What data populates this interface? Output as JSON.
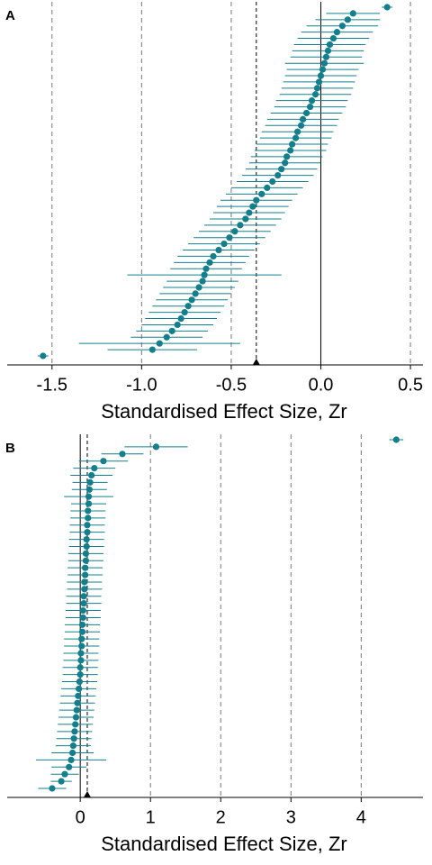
{
  "chart_data": [
    {
      "type": "forest",
      "label": "A",
      "x_label": "Standardised Effect Size, Zr",
      "color": "#137f8c",
      "xlim": [
        -1.75,
        0.57
      ],
      "xticks": [
        -1.5,
        {
          "value": -1.0,
          "label": "-1.0"
        },
        -0.5,
        {
          "value": 0.0,
          "label": "0.0"
        },
        0.5
      ],
      "mean": -0.36,
      "values": [
        0.37,
        0.18,
        0.15,
        0.12,
        0.09,
        0.07,
        0.05,
        0.04,
        0.03,
        0.02,
        0.01,
        0.0,
        -0.01,
        -0.02,
        -0.03,
        -0.05,
        -0.06,
        -0.08,
        -0.1,
        -0.11,
        -0.13,
        -0.14,
        -0.16,
        -0.17,
        -0.19,
        -0.2,
        -0.22,
        -0.24,
        -0.27,
        -0.3,
        -0.33,
        -0.36,
        -0.38,
        -0.4,
        -0.42,
        -0.45,
        -0.48,
        -0.51,
        -0.54,
        -0.57,
        -0.6,
        -0.62,
        -0.64,
        -0.65,
        -0.66,
        -0.68,
        -0.7,
        -0.72,
        -0.74,
        -0.76,
        -0.78,
        -0.8,
        -0.83,
        -0.86,
        -0.9,
        -0.94,
        -1.55
      ],
      "errors": [
        0.03,
        0.15,
        0.18,
        0.2,
        0.2,
        0.2,
        0.2,
        0.2,
        0.2,
        0.22,
        0.2,
        0.2,
        0.2,
        0.2,
        0.2,
        0.2,
        0.2,
        0.2,
        0.2,
        0.2,
        0.2,
        0.2,
        0.2,
        0.2,
        0.2,
        0.2,
        0.2,
        0.2,
        0.2,
        0.2,
        0.2,
        0.2,
        0.2,
        0.2,
        0.2,
        0.2,
        0.2,
        0.2,
        0.2,
        0.2,
        0.2,
        0.2,
        0.2,
        0.43,
        0.2,
        0.2,
        0.2,
        0.2,
        0.2,
        0.2,
        0.2,
        0.2,
        0.2,
        0.2,
        0.45,
        0.25,
        0.03
      ]
    },
    {
      "type": "forest",
      "label": "B",
      "x_label": "Standardised Effect Size, Zr",
      "color": "#137f8c",
      "xlim": [
        -1.04,
        4.88
      ],
      "xticks": [
        0,
        1,
        2,
        3,
        4
      ],
      "mean": 0.1,
      "values": [
        4.5,
        1.08,
        0.6,
        0.33,
        0.2,
        0.16,
        0.14,
        0.13,
        0.12,
        0.12,
        0.11,
        0.11,
        0.1,
        0.1,
        0.09,
        0.09,
        0.08,
        0.08,
        0.07,
        0.07,
        0.06,
        0.06,
        0.05,
        0.05,
        0.04,
        0.04,
        0.03,
        0.03,
        0.02,
        0.02,
        0.01,
        0.01,
        0.0,
        0.0,
        -0.01,
        -0.02,
        -0.03,
        -0.04,
        -0.05,
        -0.06,
        -0.07,
        -0.08,
        -0.09,
        -0.1,
        -0.11,
        -0.13,
        -0.16,
        -0.22,
        -0.27,
        -0.4
      ],
      "errors": [
        0.1,
        0.45,
        0.3,
        0.35,
        0.3,
        0.3,
        0.25,
        0.25,
        0.35,
        0.25,
        0.25,
        0.25,
        0.25,
        0.25,
        0.25,
        0.25,
        0.25,
        0.25,
        0.25,
        0.25,
        0.25,
        0.25,
        0.25,
        0.25,
        0.25,
        0.25,
        0.25,
        0.25,
        0.25,
        0.25,
        0.25,
        0.25,
        0.25,
        0.25,
        0.25,
        0.25,
        0.25,
        0.25,
        0.25,
        0.25,
        0.25,
        0.25,
        0.25,
        0.25,
        0.3,
        0.5,
        0.25,
        0.2,
        0.15,
        0.2
      ]
    }
  ]
}
